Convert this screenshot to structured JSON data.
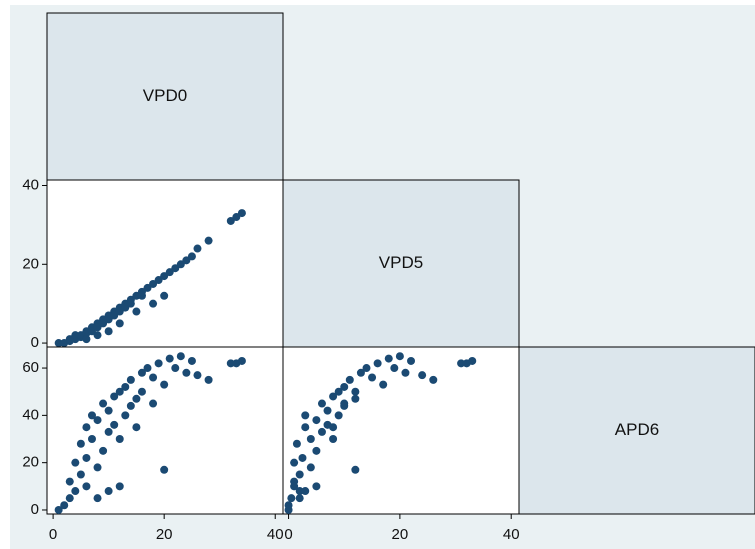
{
  "chart_data": {
    "type": "scatter_matrix",
    "color": "#1b4a73",
    "variables": [
      {
        "name": "VPD0",
        "lim": [
          -1.1,
          41.4
        ],
        "ticks": [
          0,
          20,
          40
        ],
        "values": [
          1,
          2,
          3,
          3,
          4,
          4,
          5,
          5,
          6,
          6,
          7,
          7,
          8,
          8,
          9,
          9,
          10,
          10,
          11,
          11,
          12,
          12,
          13,
          13,
          14,
          14,
          15,
          16,
          16,
          17,
          18,
          19,
          20,
          21,
          22,
          23,
          24,
          25,
          26,
          28,
          32,
          33,
          34,
          10,
          8,
          20,
          12,
          15,
          6,
          18
        ]
      },
      {
        "name": "VPD5",
        "lim": [
          -1,
          41.4
        ],
        "ticks": [
          0,
          20,
          40
        ],
        "values": [
          0,
          0,
          0.5,
          1,
          1,
          2,
          1.5,
          2,
          3,
          2.5,
          4,
          3,
          5,
          4,
          6,
          5,
          7,
          6,
          8,
          7,
          9,
          8,
          10,
          9,
          11,
          10,
          12,
          13,
          12,
          14,
          15,
          16,
          17,
          18,
          19,
          20,
          21,
          22,
          24,
          26,
          31,
          32,
          33,
          3,
          2,
          12,
          5,
          8,
          1,
          10
        ]
      },
      {
        "name": "APD6",
        "lim": [
          -1.7,
          68.9
        ],
        "ticks": [
          0,
          20,
          40,
          60
        ],
        "values": [
          0,
          2,
          5,
          12,
          20,
          8,
          28,
          15,
          35,
          22,
          30,
          40,
          38,
          18,
          45,
          25,
          42,
          33,
          48,
          36,
          50,
          30,
          52,
          40,
          55,
          44,
          47,
          58,
          50,
          60,
          56,
          62,
          53,
          64,
          60,
          65,
          58,
          63,
          57,
          55,
          62,
          62,
          63,
          8,
          5,
          17,
          10,
          35,
          10,
          45
        ]
      }
    ]
  }
}
